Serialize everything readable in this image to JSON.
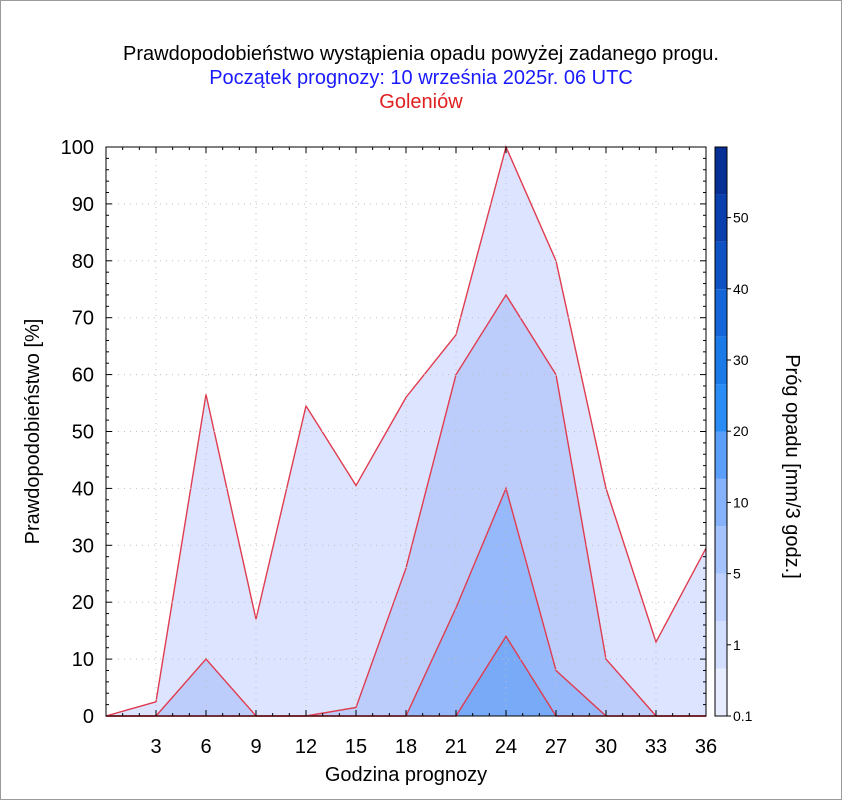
{
  "title": "Prawdopodobieństwo wystąpienia opadu powyżej zadanego progu.",
  "subtitle": "Początek prognozy: 10 września 2025r. 06 UTC",
  "location": "Goleniów",
  "colors": {
    "title": "#000000",
    "subtitle": "#1a1aff",
    "location": "#e02020",
    "outline": "#e03c50",
    "grid": "#bfbfbf"
  },
  "chart_data": {
    "type": "area",
    "title": "Prawdopodobieństwo wystąpienia opadu powyżej zadanego progu.",
    "xlabel": "Godzina prognozy",
    "ylabel": "Prawdopodobieństwo [%]",
    "xlim": [
      0,
      36
    ],
    "ylim": [
      0,
      100
    ],
    "x": [
      0,
      3,
      6,
      9,
      12,
      15,
      18,
      21,
      24,
      27,
      30,
      33,
      36
    ],
    "x_ticks": [
      "3",
      "6",
      "9",
      "12",
      "15",
      "18",
      "21",
      "24",
      "27",
      "30",
      "33",
      "36"
    ],
    "y_ticks": [
      "0",
      "10",
      "20",
      "30",
      "40",
      "50",
      "60",
      "70",
      "80",
      "90",
      "100"
    ],
    "grid": true,
    "series": [
      {
        "threshold": "0.1",
        "color": "#dde4ff",
        "values": [
          0,
          2.5,
          56.5,
          17,
          54.5,
          40.5,
          56,
          67,
          100,
          80,
          40,
          13,
          29.5
        ]
      },
      {
        "threshold": "1",
        "color": "#bccdfb",
        "values": [
          0,
          0,
          10,
          0,
          0,
          1.5,
          26,
          60,
          74,
          60,
          10,
          0,
          0
        ]
      },
      {
        "threshold": "5",
        "color": "#96b9fb",
        "values": [
          0,
          0,
          0,
          0,
          0,
          0,
          0,
          19,
          40,
          8,
          0,
          0,
          0
        ]
      },
      {
        "threshold": "10",
        "color": "#78aaf8",
        "values": [
          0,
          0,
          0,
          0,
          0,
          0,
          0,
          0,
          14,
          0,
          0,
          0,
          0
        ]
      }
    ],
    "colorbar": {
      "label": "Próg opadu [mm/3 godz.]",
      "tick_labels": [
        "0.1",
        "1",
        "5",
        "10",
        "20",
        "30",
        "40",
        "50"
      ],
      "band_colors": [
        "#e7ecff",
        "#d3deff",
        "#bdd0fe",
        "#a4c2fd",
        "#86b2fc",
        "#5aa0fb",
        "#2a8cf5",
        "#1a7ae8",
        "#1466d8",
        "#0f52c4",
        "#0a3fae",
        "#063096"
      ]
    }
  }
}
